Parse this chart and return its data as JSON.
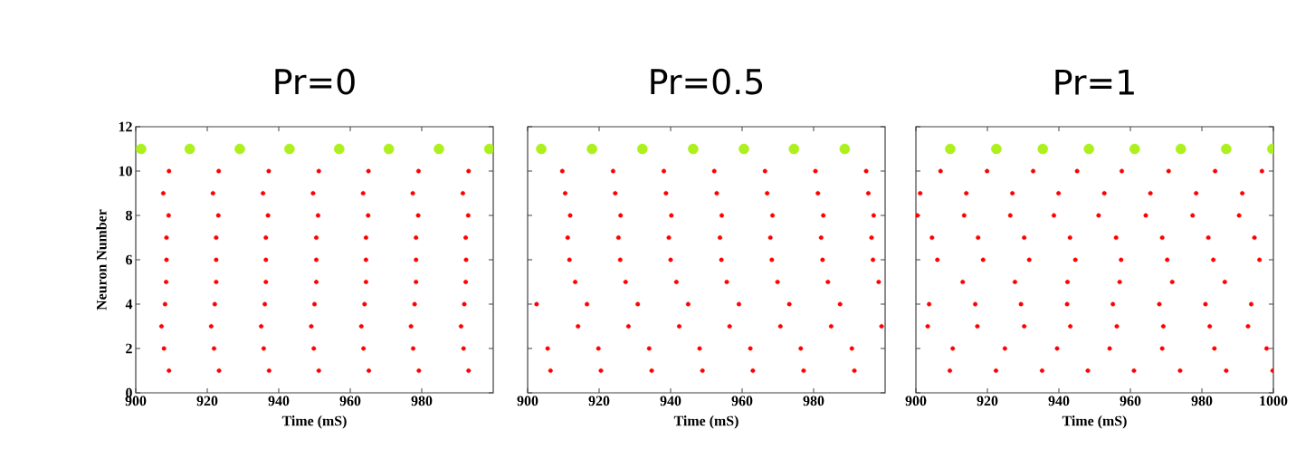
{
  "chart_data": [
    {
      "type": "scatter",
      "title": "Pr=0",
      "xlabel": "Time (mS)",
      "ylabel": "Neuron Number",
      "xlim": [
        900,
        1000
      ],
      "ylim": [
        0,
        12
      ],
      "xticks": [
        900,
        920,
        940,
        960,
        980
      ],
      "yticks": [
        0,
        2,
        4,
        6,
        8,
        10,
        12
      ],
      "marker": "circle",
      "series": [
        {
          "color": "#adf01e",
          "x": [
            901.5,
            915.1,
            929.1,
            943.0,
            956.9,
            970.8,
            984.8,
            998.9
          ],
          "values": [
            11,
            11,
            11,
            11,
            11,
            11,
            11,
            11
          ]
        },
        {
          "color": "#ff0000",
          "x": [
            909.3,
            923.2,
            937.2,
            951.2,
            965.1,
            979.1,
            993.1,
            907.7,
            921.6,
            935.6,
            949.6,
            963.6,
            977.5,
            991.5,
            909.2,
            923.1,
            937.0,
            951.0,
            965.0,
            979.0,
            993.0,
            908.6,
            922.5,
            936.4,
            950.5,
            964.4,
            978.4,
            992.3,
            908.6,
            922.5,
            936.4,
            950.5,
            964.4,
            978.4,
            992.4,
            908.5,
            922.5,
            936.4,
            950.5,
            964.4,
            978.4,
            992.3,
            908.2,
            922.1,
            936.1,
            950.0,
            964.0,
            978.0,
            991.9,
            907.2,
            921.1,
            935.1,
            949.1,
            963.1,
            977.0,
            991.0,
            907.9,
            921.9,
            935.8,
            949.8,
            963.7,
            977.6,
            991.7,
            909.3,
            923.3,
            937.3,
            951.2,
            965.2,
            979.2,
            993.1
          ],
          "values": [
            10,
            10,
            10,
            10,
            10,
            10,
            10,
            9,
            9,
            9,
            9,
            9,
            9,
            9,
            8,
            8,
            8,
            8,
            8,
            8,
            8,
            7,
            7,
            7,
            7,
            7,
            7,
            7,
            6,
            6,
            6,
            6,
            6,
            6,
            6,
            5,
            5,
            5,
            5,
            5,
            5,
            5,
            4,
            4,
            4,
            4,
            4,
            4,
            4,
            3,
            3,
            3,
            3,
            3,
            3,
            3,
            2,
            2,
            2,
            2,
            2,
            2,
            2,
            1,
            1,
            1,
            1,
            1,
            1,
            1
          ]
        }
      ]
    },
    {
      "type": "scatter",
      "title": "Pr=0.5",
      "xlabel": "Time (mS)",
      "xlim": [
        900,
        1000
      ],
      "ylim": [
        0,
        12
      ],
      "xticks": [
        900,
        920,
        940,
        960,
        980
      ],
      "yticks": [
        0,
        2,
        4,
        6,
        8,
        10,
        12
      ],
      "tick_labels": "x",
      "marker": "circle",
      "series": [
        {
          "color": "#adf01e",
          "x": [
            903.8,
            918.0,
            932.1,
            946.3,
            960.5,
            974.5,
            988.7
          ],
          "values": [
            11,
            11,
            11,
            11,
            11,
            11,
            11
          ]
        },
        {
          "color": "#ff0000",
          "x": [
            909.7,
            923.9,
            938.1,
            952.2,
            966.4,
            980.5,
            994.7,
            910.5,
            924.5,
            938.7,
            952.9,
            967.0,
            981.2,
            995.3,
            911.9,
            926.0,
            940.2,
            954.3,
            968.5,
            982.7,
            996.8,
            911.2,
            925.4,
            939.5,
            953.8,
            967.9,
            982.1,
            996.2,
            911.7,
            925.9,
            940.0,
            954.2,
            968.3,
            982.5,
            996.6,
            913.3,
            927.4,
            941.6,
            955.7,
            969.9,
            984.0,
            998.2,
            902.5,
            916.6,
            930.8,
            944.9,
            959.1,
            973.2,
            987.4,
            914.1,
            928.2,
            942.4,
            956.5,
            970.7,
            984.9,
            999.0,
            905.6,
            919.8,
            934.0,
            948.1,
            962.3,
            976.4,
            990.7,
            906.4,
            920.5,
            934.7,
            948.9,
            963.0,
            977.2,
            991.4
          ],
          "values": [
            10,
            10,
            10,
            10,
            10,
            10,
            10,
            9,
            9,
            9,
            9,
            9,
            9,
            9,
            8,
            8,
            8,
            8,
            8,
            8,
            8,
            7,
            7,
            7,
            7,
            7,
            7,
            7,
            6,
            6,
            6,
            6,
            6,
            6,
            6,
            5,
            5,
            5,
            5,
            5,
            5,
            5,
            4,
            4,
            4,
            4,
            4,
            4,
            4,
            3,
            3,
            3,
            3,
            3,
            3,
            3,
            2,
            2,
            2,
            2,
            2,
            2,
            2,
            1,
            1,
            1,
            1,
            1,
            1,
            1
          ]
        }
      ]
    },
    {
      "type": "scatter",
      "title": "Pr=1",
      "xlabel": "Time (mS)",
      "xlim": [
        900,
        1000
      ],
      "ylim": [
        0,
        12
      ],
      "xticks": [
        900,
        920,
        940,
        960,
        980,
        1000
      ],
      "yticks": [
        0,
        2,
        4,
        6,
        8,
        10,
        12
      ],
      "tick_labels": "x",
      "marker": "circle",
      "series": [
        {
          "color": "#adf01e",
          "x": [
            909.6,
            922.5,
            935.5,
            948.4,
            961.2,
            974.1,
            986.8,
            999.7
          ],
          "values": [
            11,
            11,
            11,
            11,
            11,
            11,
            11,
            11
          ]
        },
        {
          "color": "#ff0000",
          "x": [
            906.9,
            919.9,
            932.8,
            945.1,
            957.6,
            970.7,
            983.7,
            996.8,
            901.2,
            914.1,
            927.0,
            939.9,
            952.7,
            965.6,
            978.4,
            991.3,
            900.4,
            913.5,
            926.4,
            938.6,
            951.1,
            964.3,
            977.4,
            990.4,
            904.5,
            917.4,
            930.3,
            943.1,
            956.0,
            968.9,
            981.8,
            994.7,
            906.0,
            918.8,
            931.7,
            944.6,
            957.4,
            970.3,
            983.2,
            996.1,
            913.1,
            927.7,
            942.4,
            957.0,
            971.7,
            986.4,
            903.7,
            916.6,
            929.4,
            942.3,
            955.1,
            968.1,
            981.0,
            993.8,
            903.3,
            917.2,
            930.3,
            943.2,
            956.2,
            969.2,
            982.2,
            992.9,
            910.3,
            924.9,
            939.5,
            954.2,
            968.9,
            983.5,
            998.1,
            909.5,
            922.4,
            935.3,
            948.1,
            961.0,
            973.9,
            986.8,
            999.8
          ],
          "values": [
            10,
            10,
            10,
            10,
            10,
            10,
            10,
            10,
            9,
            9,
            9,
            9,
            9,
            9,
            9,
            9,
            8,
            8,
            8,
            8,
            8,
            8,
            8,
            8,
            7,
            7,
            7,
            7,
            7,
            7,
            7,
            7,
            6,
            6,
            6,
            6,
            6,
            6,
            6,
            6,
            5,
            5,
            5,
            5,
            5,
            5,
            4,
            4,
            4,
            4,
            4,
            4,
            4,
            4,
            3,
            3,
            3,
            3,
            3,
            3,
            3,
            3,
            2,
            2,
            2,
            2,
            2,
            2,
            2,
            1,
            1,
            1,
            1,
            1,
            1,
            1,
            1
          ]
        }
      ]
    }
  ]
}
